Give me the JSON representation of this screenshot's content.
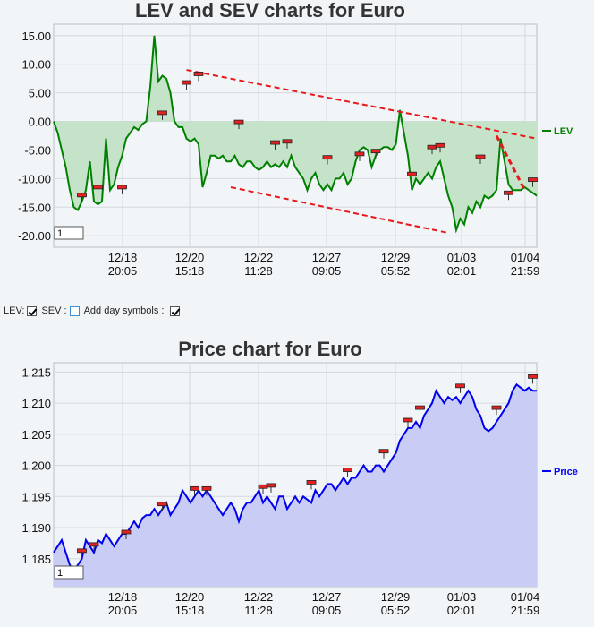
{
  "chart_data": [
    {
      "type": "line",
      "title": "LEV and SEV charts for Euro",
      "x_ticks": [
        "12/18 20:05",
        "12/20 15:18",
        "12/22 11:28",
        "12/27 09:05",
        "12/29 05:52",
        "01/03 02:01",
        "01/04 21:59"
      ],
      "ylim": [
        -22,
        17
      ],
      "y_ticks": [
        "15.00",
        "10.00",
        "5.00",
        "0.00",
        "-5.00",
        "-10.00",
        "-15.00",
        "-20.00"
      ],
      "grid": true,
      "legend": "right",
      "zoom_box": "1",
      "series": [
        {
          "name": "LEV",
          "color": "#008000",
          "fill": "#c5e3c8",
          "x": [
            0,
            1,
            2,
            3,
            4,
            5,
            6,
            7,
            8,
            9,
            10,
            11,
            12,
            13,
            14,
            15,
            16,
            17,
            18,
            19,
            20,
            21,
            22,
            23,
            24,
            25,
            26,
            27,
            28,
            29,
            30,
            31,
            32,
            33,
            34,
            35,
            36,
            37,
            38,
            39,
            40,
            41,
            42,
            43,
            44,
            45,
            46,
            47,
            48,
            49,
            50,
            51,
            52,
            53,
            54,
            55,
            56,
            57,
            58,
            59,
            60,
            61,
            62,
            63,
            64,
            65,
            66,
            67,
            68,
            69,
            70,
            71,
            72,
            73,
            74,
            75,
            76,
            77,
            78,
            79,
            80,
            81,
            82,
            83,
            84,
            85,
            86,
            87,
            88,
            89,
            90,
            91,
            92,
            93,
            94,
            95,
            96,
            97,
            98,
            99,
            100,
            101,
            102,
            103,
            104,
            105,
            106,
            107,
            108,
            109,
            110,
            111,
            112,
            113,
            114,
            115,
            116,
            117,
            118,
            119,
            120
          ],
          "y": [
            0,
            -2,
            -5,
            -8,
            -12,
            -15,
            -15.5,
            -14,
            -12,
            -7,
            -14,
            -14.5,
            -14,
            -3,
            -12,
            -11,
            -8,
            -6,
            -3,
            -2,
            -1,
            -1.5,
            -0.5,
            0,
            6,
            15,
            7,
            8,
            7.5,
            5,
            0,
            -1,
            -1,
            -3,
            -3.5,
            -3,
            -4,
            -11.5,
            -9,
            -6,
            -6,
            -6.5,
            -6,
            -7,
            -7,
            -6,
            -7.5,
            -8,
            -7,
            -7,
            -8,
            -8.5,
            -8,
            -7,
            -8,
            -7.5,
            -8,
            -7,
            -8,
            -6,
            -8,
            -9,
            -10,
            -12,
            -10,
            -9,
            -11,
            -12,
            -11,
            -12,
            -10,
            -10,
            -9,
            -11,
            -10,
            -7,
            -5,
            -4.5,
            -5,
            -8,
            -6,
            -5,
            -4.5,
            -4.5,
            -5,
            -4,
            2,
            -2,
            -6,
            -12,
            -10,
            -11,
            -10,
            -9,
            -10,
            -8,
            -7,
            -10,
            -13,
            -15,
            -19,
            -17,
            -18,
            -15,
            -16,
            -14,
            -15,
            -13,
            -13.5,
            -13,
            -12,
            -3,
            -7,
            -11,
            -12,
            -12,
            -12,
            -11.5,
            -12,
            -12.5,
            -13
          ]
        }
      ],
      "trendlines": [
        {
          "name": "upper",
          "color": "#e8171b",
          "from": [
            33,
            9
          ],
          "to": [
            120,
            -3
          ]
        },
        {
          "name": "lower",
          "color": "#e8171b",
          "from": [
            44,
            -11.5
          ],
          "to": [
            98,
            -19.5
          ]
        },
        {
          "name": "short",
          "color": "#e8171b",
          "from": [
            110,
            -2.5
          ],
          "to": [
            117,
            -12
          ]
        }
      ],
      "markers": [
        {
          "x": 7,
          "y": -13.2
        },
        {
          "x": 11,
          "y": -11.8
        },
        {
          "x": 17,
          "y": -11.8
        },
        {
          "x": 27,
          "y": 1.2
        },
        {
          "x": 33,
          "y": 6.5
        },
        {
          "x": 36,
          "y": 8
        },
        {
          "x": 46,
          "y": -0.4
        },
        {
          "x": 55,
          "y": -4
        },
        {
          "x": 58,
          "y": -3.8
        },
        {
          "x": 68,
          "y": -6.6
        },
        {
          "x": 76,
          "y": -6
        },
        {
          "x": 80,
          "y": -5.5
        },
        {
          "x": 89,
          "y": -9.5
        },
        {
          "x": 94,
          "y": -4.8
        },
        {
          "x": 96,
          "y": -4.5
        },
        {
          "x": 106,
          "y": -6.5
        },
        {
          "x": 113,
          "y": -12.8
        },
        {
          "x": 119,
          "y": -10.5
        }
      ]
    },
    {
      "type": "area",
      "title": "Price chart for Euro",
      "x_ticks": [
        "12/18 20:05",
        "12/20 15:18",
        "12/22 11:28",
        "12/27 09:05",
        "12/29 05:52",
        "01/03 02:01",
        "01/04 21:59"
      ],
      "ylim": [
        1.1805,
        1.2165
      ],
      "y_ticks": [
        "1.215",
        "1.210",
        "1.205",
        "1.200",
        "1.195",
        "1.190",
        "1.185"
      ],
      "grid": true,
      "legend": "right",
      "zoom_box": "1",
      "series": [
        {
          "name": "Price",
          "color": "#0000ee",
          "fill": "#c9cdf6",
          "x": [
            0,
            1,
            2,
            3,
            4,
            5,
            6,
            7,
            8,
            9,
            10,
            11,
            12,
            13,
            14,
            15,
            16,
            17,
            18,
            19,
            20,
            21,
            22,
            23,
            24,
            25,
            26,
            27,
            28,
            29,
            30,
            31,
            32,
            33,
            34,
            35,
            36,
            37,
            38,
            39,
            40,
            41,
            42,
            43,
            44,
            45,
            46,
            47,
            48,
            49,
            50,
            51,
            52,
            53,
            54,
            55,
            56,
            57,
            58,
            59,
            60,
            61,
            62,
            63,
            64,
            65,
            66,
            67,
            68,
            69,
            70,
            71,
            72,
            73,
            74,
            75,
            76,
            77,
            78,
            79,
            80,
            81,
            82,
            83,
            84,
            85,
            86,
            87,
            88,
            89,
            90,
            91,
            92,
            93,
            94,
            95,
            96,
            97,
            98,
            99,
            100,
            101,
            102,
            103,
            104,
            105,
            106,
            107,
            108,
            109,
            110,
            111,
            112,
            113,
            114,
            115,
            116,
            117,
            118,
            119,
            120
          ],
          "y": [
            1.186,
            1.187,
            1.188,
            1.186,
            1.184,
            1.183,
            1.184,
            1.185,
            1.188,
            1.187,
            1.186,
            1.188,
            1.1875,
            1.189,
            1.188,
            1.187,
            1.188,
            1.189,
            1.189,
            1.19,
            1.191,
            1.19,
            1.1915,
            1.192,
            1.192,
            1.193,
            1.192,
            1.193,
            1.194,
            1.192,
            1.193,
            1.194,
            1.196,
            1.195,
            1.194,
            1.195,
            1.196,
            1.195,
            1.196,
            1.195,
            1.194,
            1.193,
            1.192,
            1.193,
            1.194,
            1.193,
            1.191,
            1.193,
            1.194,
            1.194,
            1.195,
            1.196,
            1.194,
            1.195,
            1.194,
            1.193,
            1.195,
            1.195,
            1.193,
            1.194,
            1.195,
            1.194,
            1.195,
            1.1945,
            1.194,
            1.196,
            1.195,
            1.196,
            1.197,
            1.197,
            1.196,
            1.197,
            1.198,
            1.197,
            1.198,
            1.198,
            1.199,
            1.2,
            1.199,
            1.199,
            1.2,
            1.2,
            1.199,
            1.2,
            1.201,
            1.202,
            1.204,
            1.205,
            1.206,
            1.206,
            1.207,
            1.206,
            1.208,
            1.209,
            1.21,
            1.212,
            1.211,
            1.21,
            1.211,
            1.2105,
            1.211,
            1.21,
            1.211,
            1.212,
            1.211,
            1.209,
            1.208,
            1.206,
            1.2055,
            1.206,
            1.207,
            1.208,
            1.209,
            1.21,
            1.212,
            1.213,
            1.2125,
            1.212,
            1.2125,
            1.212,
            1.212
          ]
        }
      ],
      "markers": [
        {
          "x": 7,
          "y": 1.186
        },
        {
          "x": 10,
          "y": 1.187
        },
        {
          "x": 18,
          "y": 1.189
        },
        {
          "x": 27,
          "y": 1.1935
        },
        {
          "x": 35,
          "y": 1.196
        },
        {
          "x": 38,
          "y": 1.196
        },
        {
          "x": 52,
          "y": 1.1963
        },
        {
          "x": 54,
          "y": 1.1965
        },
        {
          "x": 64,
          "y": 1.197
        },
        {
          "x": 73,
          "y": 1.199
        },
        {
          "x": 82,
          "y": 1.202
        },
        {
          "x": 88,
          "y": 1.207
        },
        {
          "x": 91,
          "y": 1.209
        },
        {
          "x": 101,
          "y": 1.2125
        },
        {
          "x": 110,
          "y": 1.209
        },
        {
          "x": 119,
          "y": 1.214
        }
      ]
    }
  ],
  "controls": {
    "lev_label": "LEV:",
    "lev_checked": true,
    "sev_label": "SEV :",
    "sev_checked": false,
    "day_label": "Add day symbols :",
    "day_checked": true
  }
}
